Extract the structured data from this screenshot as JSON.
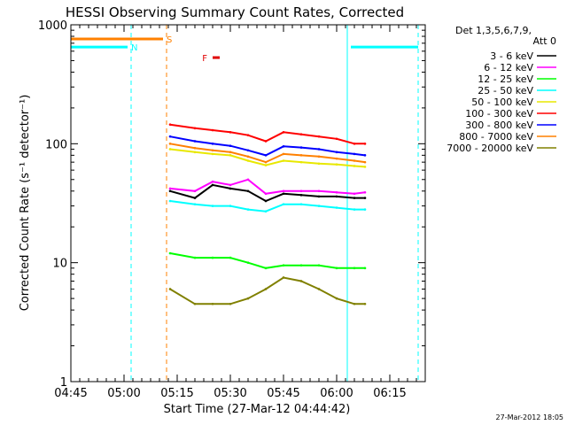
{
  "chart_data": {
    "type": "line",
    "title": "HESSI Observing Summary Count Rates, Corrected",
    "xlabel": "Start Time (27-Mar-12 04:44:42)",
    "ylabel": "Corrected Count Rate (s⁻¹ detector⁻¹)",
    "ylog": true,
    "ylim": [
      1,
      1000
    ],
    "y_ticks": [
      {
        "value": 1,
        "label": "1"
      },
      {
        "value": 10,
        "label": "10"
      },
      {
        "value": 100,
        "label": "100"
      },
      {
        "value": 1000,
        "label": "1000"
      }
    ],
    "xlim": [
      "04:45",
      "06:25"
    ],
    "x_ticks": [
      "04:45",
      "05:00",
      "05:15",
      "05:30",
      "05:45",
      "06:00",
      "06:15"
    ],
    "x_minor_step_minutes": 2.5,
    "detector_header": [
      "Det 1,3,5,6,7,9,",
      "Att 0"
    ],
    "legend_position": "top-right",
    "timestamp": "27-Mar-2012 18:05",
    "series": [
      {
        "name": "3 - 6 keV",
        "color": "#000000",
        "t": [
          "05:13",
          "05:20",
          "05:25",
          "05:30",
          "05:35",
          "05:40",
          "05:45",
          "05:50",
          "05:55",
          "06:00",
          "06:05",
          "06:08"
        ],
        "values": [
          40,
          35,
          45,
          42,
          40,
          33,
          38,
          37,
          36,
          36,
          35,
          35
        ]
      },
      {
        "name": "6 - 12 keV",
        "color": "#ff00ff",
        "t": [
          "05:13",
          "05:20",
          "05:25",
          "05:30",
          "05:35",
          "05:40",
          "05:45",
          "05:50",
          "05:55",
          "06:00",
          "06:05",
          "06:08"
        ],
        "values": [
          42,
          40,
          48,
          45,
          50,
          38,
          40,
          40,
          40,
          39,
          38,
          39
        ]
      },
      {
        "name": "12 - 25 keV",
        "color": "#00ff00",
        "t": [
          "05:13",
          "05:20",
          "05:25",
          "05:30",
          "05:35",
          "05:40",
          "05:45",
          "05:50",
          "05:55",
          "06:00",
          "06:05",
          "06:08"
        ],
        "values": [
          12,
          11,
          11,
          11,
          10,
          9,
          9.5,
          9.5,
          9.5,
          9,
          9,
          9
        ]
      },
      {
        "name": "25 - 50 keV",
        "color": "#00ffff",
        "t": [
          "05:13",
          "05:20",
          "05:25",
          "05:30",
          "05:35",
          "05:40",
          "05:45",
          "05:50",
          "05:55",
          "06:00",
          "06:05",
          "06:08"
        ],
        "values": [
          33,
          31,
          30,
          30,
          28,
          27,
          31,
          31,
          30,
          29,
          28,
          28
        ]
      },
      {
        "name": "50 - 100 keV",
        "color": "#e8e800",
        "t": [
          "05:13",
          "05:20",
          "05:25",
          "05:30",
          "05:35",
          "05:40",
          "05:45",
          "05:50",
          "05:55",
          "06:00",
          "06:05",
          "06:08"
        ],
        "values": [
          90,
          85,
          82,
          80,
          72,
          66,
          72,
          70,
          68,
          67,
          65,
          64
        ]
      },
      {
        "name": "100 - 300 keV",
        "color": "#ff0000",
        "t": [
          "05:13",
          "05:20",
          "05:25",
          "05:30",
          "05:35",
          "05:40",
          "05:45",
          "05:50",
          "05:55",
          "06:00",
          "06:05",
          "06:08"
        ],
        "values": [
          145,
          135,
          130,
          125,
          118,
          105,
          125,
          120,
          115,
          110,
          100,
          100
        ]
      },
      {
        "name": "300 - 800 keV",
        "color": "#0000ff",
        "t": [
          "05:13",
          "05:20",
          "05:25",
          "05:30",
          "05:35",
          "05:40",
          "05:45",
          "05:50",
          "05:55",
          "06:00",
          "06:05",
          "06:08"
        ],
        "values": [
          115,
          105,
          100,
          96,
          88,
          80,
          95,
          93,
          90,
          85,
          82,
          80
        ]
      },
      {
        "name": "800 - 7000 keV",
        "color": "#ff8000",
        "t": [
          "05:13",
          "05:20",
          "05:25",
          "05:30",
          "05:35",
          "05:40",
          "05:45",
          "05:50",
          "05:55",
          "06:00",
          "06:05",
          "06:08"
        ],
        "values": [
          100,
          92,
          88,
          85,
          78,
          70,
          82,
          80,
          78,
          75,
          72,
          70
        ]
      },
      {
        "name": "7000 - 20000 keV",
        "color": "#808000",
        "t": [
          "05:13",
          "05:20",
          "05:25",
          "05:30",
          "05:35",
          "05:40",
          "05:45",
          "05:50",
          "05:55",
          "06:00",
          "06:05",
          "06:08"
        ],
        "values": [
          6,
          4.5,
          4.5,
          4.5,
          5,
          6,
          7.5,
          7,
          6,
          5,
          4.5,
          4.5
        ]
      }
    ],
    "flag_bars": [
      {
        "label": "N",
        "color": "#00ffff",
        "value": 650,
        "segments": [
          [
            "04:45",
            "05:01"
          ],
          [
            "06:04",
            "06:23"
          ]
        ]
      },
      {
        "label": "S",
        "color": "#ff8000",
        "value": 760,
        "segments": [
          [
            "04:45",
            "05:11"
          ]
        ]
      },
      {
        "label": "F",
        "color": "#e00000",
        "value": 530,
        "segments": [
          [
            "05:25",
            "05:27"
          ]
        ]
      }
    ],
    "markers": [
      {
        "t": "04:45",
        "color": "#00ffff",
        "style": "solid"
      },
      {
        "t": "05:02",
        "color": "#00ffff",
        "style": "dashed"
      },
      {
        "t": "05:12",
        "color": "#ff8000",
        "style": "dashed"
      },
      {
        "t": "06:03",
        "color": "#00ffff",
        "style": "solid"
      },
      {
        "t": "06:23",
        "color": "#00ffff",
        "style": "dashed"
      }
    ]
  }
}
